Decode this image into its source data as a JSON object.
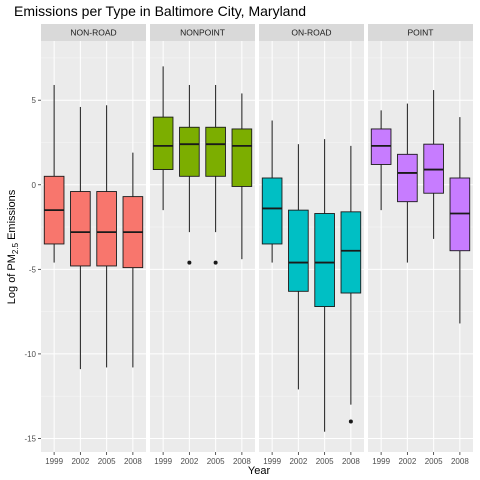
{
  "chart_data": {
    "type": "boxplot",
    "title": "Emissions per Type in Baltimore City, Maryland",
    "xlabel": "Year",
    "ylabel": "Log of PM",
    "ylabel_sub": "2.5",
    "ylabel_suffix": " Emissions",
    "ylim": [
      -15.8,
      8.5
    ],
    "yticks": [
      5,
      0,
      -5,
      -10,
      -15
    ],
    "ytick_labels": [
      "5",
      "0",
      "-5",
      "-10",
      "-15"
    ],
    "categories": [
      "1999",
      "2002",
      "2005",
      "2008"
    ],
    "grid": true,
    "panel_background": "#ebebeb",
    "strip_background": "#d9d9d9",
    "facets": [
      {
        "name": "NON-ROAD",
        "color": "#f8766d",
        "boxes": [
          {
            "year": "1999",
            "min": -4.6,
            "q1": -3.5,
            "median": -1.5,
            "q3": 0.5,
            "max": 5.9,
            "outliers": []
          },
          {
            "year": "2002",
            "min": -10.9,
            "q1": -4.8,
            "median": -2.8,
            "q3": -0.4,
            "max": 4.6,
            "outliers": []
          },
          {
            "year": "2005",
            "min": -10.8,
            "q1": -4.8,
            "median": -2.8,
            "q3": -0.4,
            "max": 4.7,
            "outliers": []
          },
          {
            "year": "2008",
            "min": -10.8,
            "q1": -4.9,
            "median": -2.8,
            "q3": -0.7,
            "max": 1.9,
            "outliers": []
          }
        ]
      },
      {
        "name": "NONPOINT",
        "color": "#7cae00",
        "boxes": [
          {
            "year": "1999",
            "min": -1.5,
            "q1": 0.9,
            "median": 2.3,
            "q3": 4.0,
            "max": 7.0,
            "outliers": []
          },
          {
            "year": "2002",
            "min": -2.8,
            "q1": 0.5,
            "median": 2.4,
            "q3": 3.4,
            "max": 5.9,
            "outliers": [
              -4.6
            ]
          },
          {
            "year": "2005",
            "min": -2.8,
            "q1": 0.5,
            "median": 2.4,
            "q3": 3.4,
            "max": 5.9,
            "outliers": [
              -4.6
            ]
          },
          {
            "year": "2008",
            "min": -4.4,
            "q1": -0.1,
            "median": 2.3,
            "q3": 3.3,
            "max": 5.4,
            "outliers": []
          }
        ]
      },
      {
        "name": "ON-ROAD",
        "color": "#00bfc4",
        "boxes": [
          {
            "year": "1999",
            "min": -4.6,
            "q1": -3.5,
            "median": -1.4,
            "q3": 0.4,
            "max": 3.8,
            "outliers": []
          },
          {
            "year": "2002",
            "min": -12.1,
            "q1": -6.3,
            "median": -4.6,
            "q3": -1.5,
            "max": 2.4,
            "outliers": []
          },
          {
            "year": "2005",
            "min": -14.6,
            "q1": -7.2,
            "median": -4.6,
            "q3": -1.7,
            "max": 2.7,
            "outliers": []
          },
          {
            "year": "2008",
            "min": -13.0,
            "q1": -6.4,
            "median": -3.9,
            "q3": -1.6,
            "max": 2.3,
            "outliers": [
              -14.0
            ]
          }
        ]
      },
      {
        "name": "POINT",
        "color": "#c77cff",
        "boxes": [
          {
            "year": "1999",
            "min": -1.5,
            "q1": 1.2,
            "median": 2.3,
            "q3": 3.3,
            "max": 4.4,
            "outliers": []
          },
          {
            "year": "2002",
            "min": -4.6,
            "q1": -1.0,
            "median": 0.7,
            "q3": 1.8,
            "max": 4.8,
            "outliers": []
          },
          {
            "year": "2005",
            "min": -3.2,
            "q1": -0.5,
            "median": 0.9,
            "q3": 2.4,
            "max": 5.6,
            "outliers": []
          },
          {
            "year": "2008",
            "min": -8.2,
            "q1": -3.9,
            "median": -1.7,
            "q3": 0.4,
            "max": 4.0,
            "outliers": []
          }
        ]
      }
    ]
  }
}
